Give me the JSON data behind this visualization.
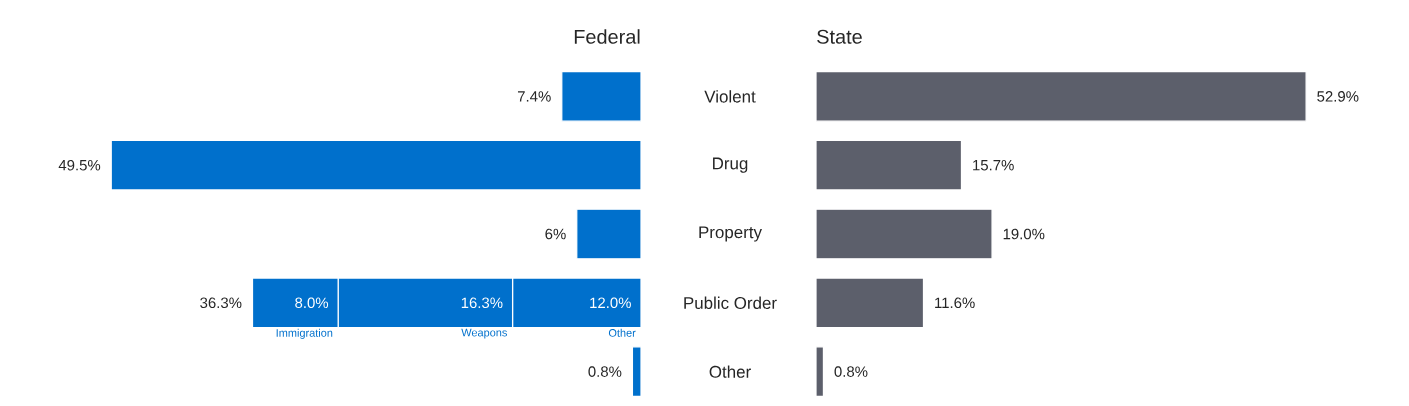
{
  "chart_data": [
    {
      "type": "bar",
      "orientation": "horizontal",
      "stacked": true,
      "title": "Federal",
      "categories": [
        "Violent",
        "Drug",
        "Property",
        "Public Order",
        "Other"
      ],
      "tick_labels": "y",
      "series": [
        {
          "color": "#0070cc",
          "values": [
            7.4,
            49.5,
            6,
            null,
            0.8
          ],
          "value_labels": [
            "7.4%",
            "49.5%",
            "6%",
            null,
            "0.8%"
          ]
        },
        {
          "name": "Other",
          "color": "#0070cc",
          "values": [
            null,
            null,
            null,
            12.0,
            null
          ],
          "value_labels": [
            null,
            null,
            null,
            "12.0%",
            null
          ]
        },
        {
          "name": "Weapons",
          "color": "#0070cc",
          "values": [
            null,
            null,
            null,
            16.3,
            null
          ],
          "value_labels": [
            null,
            null,
            null,
            "16.3%",
            null
          ]
        },
        {
          "name": "Immigration",
          "color": "#0070cc",
          "values": [
            null,
            null,
            null,
            8.0,
            null
          ],
          "value_labels": [
            null,
            null,
            null,
            "8.0%",
            null
          ]
        }
      ],
      "totals": [
        null,
        null,
        null,
        "36.3%",
        null
      ]
    },
    {
      "type": "bar",
      "orientation": "horizontal",
      "title": "State",
      "categories": [
        null,
        null,
        null,
        null,
        null
      ],
      "tick_labels": false,
      "series": [
        {
          "color": "#5c5f6b",
          "values": [
            52.9,
            15.7,
            19.0,
            11.6,
            0.8
          ],
          "value_labels": [
            "52.9%",
            "15.7%",
            "19.0%",
            "11.6%",
            "0.8%"
          ]
        }
      ]
    }
  ]
}
